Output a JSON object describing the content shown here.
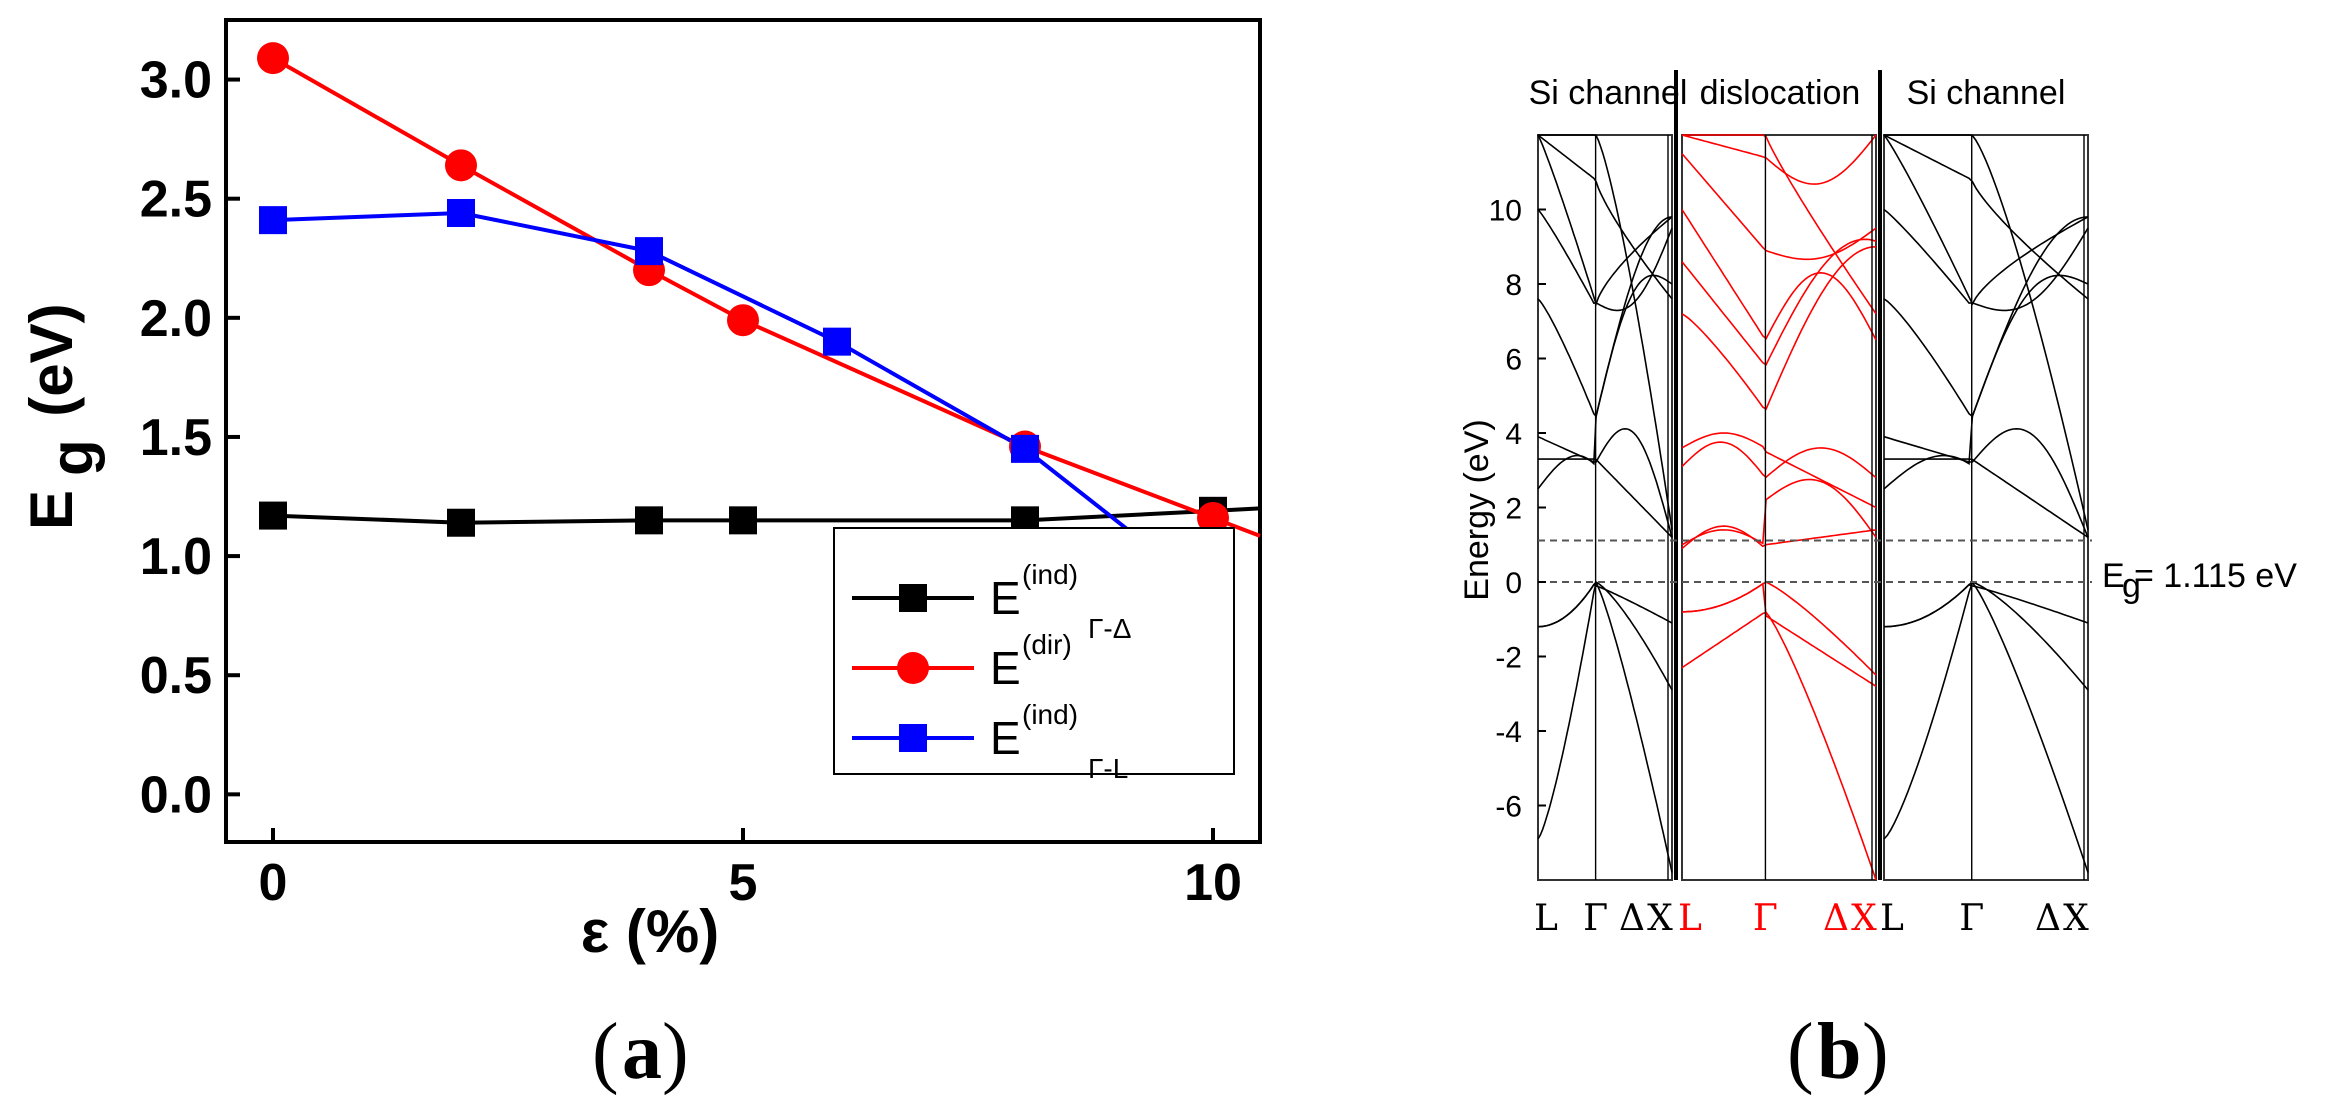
{
  "captions": {
    "a": "a",
    "b": "b"
  },
  "chart_data": [
    {
      "type": "line",
      "xlabel": "ε (%)",
      "ylabel_main": "E",
      "ylabel_sub": "g",
      "ylabel_unit": "(eV)",
      "xlim": [
        -0.5,
        10.5
      ],
      "ylim": [
        -0.2,
        3.25
      ],
      "x_ticks": [
        "0",
        "5",
        "10"
      ],
      "y_ticks": [
        "0.0",
        "0.5",
        "1.0",
        "1.5",
        "2.0",
        "2.5",
        "3.0"
      ],
      "legend_position": "bottom-right",
      "series": [
        {
          "name": "E",
          "sup": "(ind)",
          "sub": "Γ-Δ",
          "color": "#000000",
          "marker": "square",
          "x": [
            0,
            2,
            4,
            5,
            8,
            10
          ],
          "y": [
            1.17,
            1.14,
            1.15,
            1.15,
            1.15,
            1.19
          ]
        },
        {
          "name": "E",
          "sup": "(dir)",
          "sub": "",
          "color": "#ff0000",
          "marker": "circle",
          "x": [
            0,
            2,
            4,
            5,
            8,
            10
          ],
          "y": [
            3.09,
            2.64,
            2.2,
            1.99,
            1.46,
            1.16
          ]
        },
        {
          "name": "E",
          "sup": "(ind)",
          "sub": "Γ-L",
          "color": "#0000ff",
          "marker": "square",
          "x": [
            0,
            2,
            4,
            6,
            8,
            10
          ],
          "y": [
            2.41,
            2.44,
            2.28,
            1.9,
            1.45,
            0.83
          ]
        }
      ]
    },
    {
      "type": "line",
      "ylabel": "Energy (eV)",
      "ylim": [
        -8,
        12
      ],
      "y_ticks": [
        10,
        8,
        6,
        4,
        2,
        0,
        -2,
        -4,
        -6
      ],
      "panels": [
        {
          "title": "Si channel",
          "color": "#000000",
          "k_labels": [
            "L",
            "Γ",
            "Δ",
            "X"
          ]
        },
        {
          "title": "dislocation",
          "color": "#ff0000",
          "k_labels": [
            "L",
            "Γ",
            "Δ",
            "X"
          ]
        },
        {
          "title": "Si channel",
          "color": "#000000",
          "k_labels": [
            "L",
            "Γ",
            "Δ",
            "X"
          ]
        }
      ],
      "reference_lines": [
        0,
        1.115
      ],
      "annotation": {
        "main": "E",
        "sub": "g",
        "rest": " = 1.115 eV"
      }
    }
  ]
}
